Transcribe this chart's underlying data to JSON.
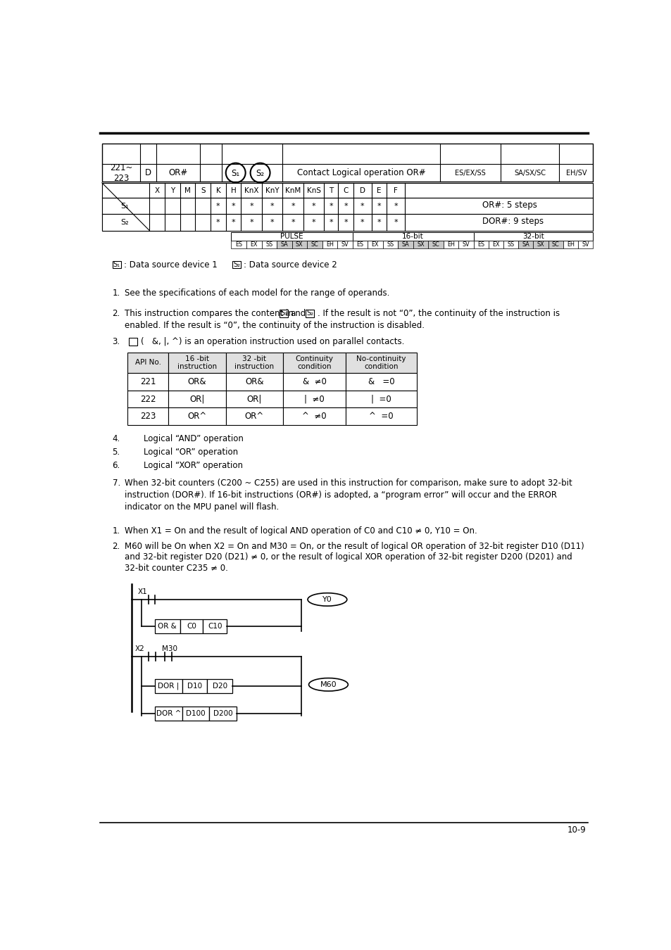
{
  "page_number": "10-9",
  "header_table": {
    "api_range": "221~\n223",
    "type": "D",
    "instruction": "OR#",
    "description": "Contact Logical operation OR#",
    "model1": "ES/EX/SS",
    "model2": "SA/SX/SC",
    "model3": "EH/SV"
  },
  "operand_cols": [
    "X",
    "Y",
    "M",
    "S",
    "K",
    "H",
    "KnX",
    "KnY",
    "KnM",
    "KnS",
    "T",
    "C",
    "D",
    "E",
    "F"
  ],
  "S1_marks": [
    0,
    0,
    0,
    0,
    1,
    1,
    1,
    1,
    1,
    1,
    1,
    1,
    1,
    1,
    1
  ],
  "S2_marks": [
    0,
    0,
    0,
    0,
    1,
    1,
    1,
    1,
    1,
    1,
    1,
    1,
    1,
    1,
    1
  ],
  "shaded_cols": [
    6,
    7,
    8,
    9
  ],
  "note1": "OR#: 5 steps",
  "note2": "DOR#: 9 steps",
  "pulse_cells": [
    "ES",
    "EX",
    "SS",
    "SA",
    "SX",
    "SC",
    "EH",
    "SV"
  ],
  "shaded_pulse": [
    "SA",
    "SX",
    "SC"
  ],
  "api_table_headers": [
    "API No.",
    "16 -bit\ninstruction",
    "32 -bit\ninstruction",
    "Continuity\ncondition",
    "No-continuity\ncondition"
  ],
  "api_table_col_widths": [
    75,
    105,
    105,
    115,
    130
  ],
  "api_rows": [
    [
      "221",
      "OR&",
      "OR&",
      "&  ≠0",
      "&   =0"
    ],
    [
      "222",
      "OR|",
      "OR|",
      "|  ≠0",
      "|  =0"
    ],
    [
      "223",
      "OR^",
      "OR^",
      "^  ≠0",
      "^  =0"
    ]
  ],
  "bg_color": "#ffffff",
  "line_color": "#000000",
  "gray_header": "#e0e0e0",
  "gray_shade": "#c8c8c8"
}
